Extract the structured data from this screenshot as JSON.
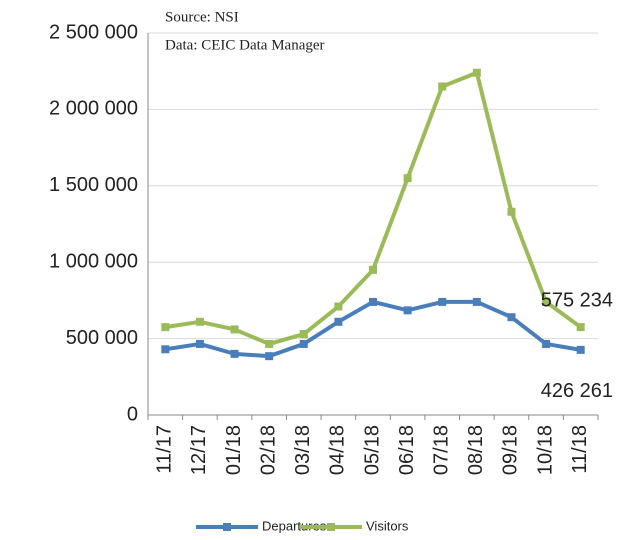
{
  "chart_data": {
    "type": "line",
    "annotations": [
      "Source: NSI",
      "Data: CEIC Data Manager"
    ],
    "categories": [
      "11/17",
      "12/17",
      "01/18",
      "02/18",
      "03/18",
      "04/18",
      "05/18",
      "06/18",
      "07/18",
      "08/18",
      "09/18",
      "10/18",
      "11/18"
    ],
    "series": [
      {
        "name": "Departures",
        "color": "#4a7ebb",
        "values": [
          430000,
          465000,
          400000,
          385000,
          465000,
          610000,
          740000,
          685000,
          740000,
          740000,
          640000,
          465000,
          426261
        ],
        "value_labels": [
          null,
          null,
          null,
          null,
          null,
          null,
          null,
          null,
          null,
          null,
          null,
          null,
          "426 261"
        ]
      },
      {
        "name": "Visitors",
        "color": "#9bbb59",
        "values": [
          575000,
          610000,
          560000,
          465000,
          530000,
          710000,
          950000,
          1550000,
          2150000,
          2240000,
          1330000,
          740000,
          575234
        ],
        "value_labels": [
          null,
          null,
          null,
          null,
          null,
          null,
          null,
          null,
          null,
          null,
          null,
          null,
          "575 234"
        ]
      }
    ],
    "ylim": [
      0,
      2500000
    ],
    "yticks": [
      0,
      {
        "value": 500000,
        "label": "500 000"
      },
      {
        "value": 1000000,
        "label": "1 000 000"
      },
      {
        "value": 1500000,
        "label": "1 500 000"
      },
      {
        "value": 2000000,
        "label": "2 000 000"
      },
      {
        "value": 2500000,
        "label": "2 500 000"
      }
    ],
    "grid": true,
    "legend": "bottom"
  }
}
